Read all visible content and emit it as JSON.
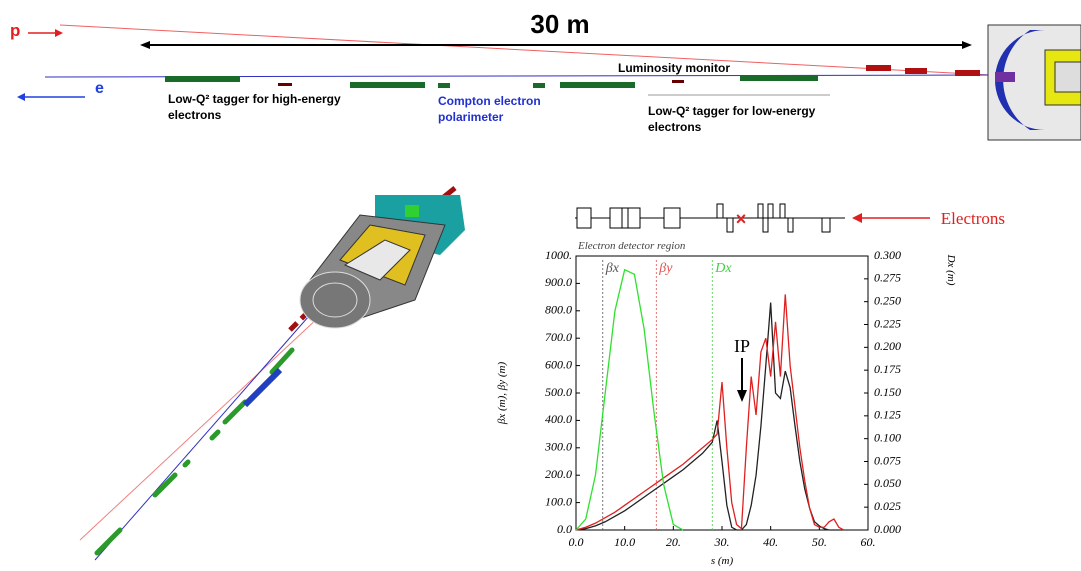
{
  "diagram": {
    "proton_label": "p",
    "electron_label": "e",
    "distance_label": "30 m",
    "luminosity_label": "Luminosity monitor",
    "high_energy_tagger_lines": [
      "Low-Q² tagger for high-energy",
      "electrons"
    ],
    "compton_lines": [
      "Compton electron",
      "polarimeter"
    ],
    "low_energy_tagger_lines": [
      "Low-Q² tagger for low-energy",
      "electrons"
    ]
  },
  "chart_data": {
    "type": "line",
    "region_label": "Electron detector region",
    "beam_label": "Electrons",
    "ip_label": "IP",
    "marker_labels": [
      "βx",
      "βy",
      "Dx"
    ],
    "xlabel": "s (m)",
    "ylabel": "βx (m), βy (m)",
    "y2label": "Dx (m)",
    "xlim": [
      0,
      60
    ],
    "ylim": [
      0,
      1000
    ],
    "y2lim": [
      0,
      0.3
    ],
    "xticks": [
      {
        "value": 0,
        "label": "0.0"
      },
      {
        "value": 10,
        "label": "10.0"
      },
      {
        "value": 20,
        "label": "20."
      },
      {
        "value": 30,
        "label": "30."
      },
      {
        "value": 40,
        "label": "40."
      },
      {
        "value": 50,
        "label": "50."
      },
      {
        "value": 60,
        "label": "60."
      }
    ],
    "yticks": [
      {
        "value": 0,
        "label": "0.0"
      },
      {
        "value": 100,
        "label": "100.0"
      },
      {
        "value": 200,
        "label": "200.0"
      },
      {
        "value": 300,
        "label": "300.0"
      },
      {
        "value": 400,
        "label": "400.0"
      },
      {
        "value": 500,
        "label": "500.0"
      },
      {
        "value": 600,
        "label": "600.0"
      },
      {
        "value": 700,
        "label": "700.0"
      },
      {
        "value": 800,
        "label": "800.0"
      },
      {
        "value": 900,
        "label": "900.0"
      },
      {
        "value": 1000,
        "label": "1000."
      }
    ],
    "y2ticks": [
      {
        "value": 0,
        "label": "0.000"
      },
      {
        "value": 0.025,
        "label": "0.025"
      },
      {
        "value": 0.05,
        "label": "0.050"
      },
      {
        "value": 0.075,
        "label": "0.075"
      },
      {
        "value": 0.1,
        "label": "0.100"
      },
      {
        "value": 0.125,
        "label": "0.125"
      },
      {
        "value": 0.15,
        "label": "0.150"
      },
      {
        "value": 0.175,
        "label": "0.175"
      },
      {
        "value": 0.2,
        "label": "0.200"
      },
      {
        "value": 0.225,
        "label": "0.225"
      },
      {
        "value": 0.25,
        "label": "0.250"
      },
      {
        "value": 0.275,
        "label": "0.275"
      },
      {
        "value": 0.3,
        "label": "0.300"
      }
    ],
    "marker_positions": [
      5.5,
      16.5,
      28
    ],
    "marker_colors": [
      "#555555",
      "#e05050",
      "#40d040"
    ],
    "x": [
      0,
      2,
      4,
      6,
      8,
      10,
      12,
      14,
      16,
      18,
      20,
      22,
      24,
      26,
      28,
      29,
      30,
      31,
      32,
      33,
      34,
      35,
      36,
      37,
      38,
      39,
      40,
      41,
      42,
      43,
      44,
      45,
      46,
      47,
      48,
      49,
      50,
      51,
      52,
      53,
      54,
      55
    ],
    "series": [
      {
        "color": "#222222",
        "values": [
          0,
          5,
          15,
          30,
          50,
          70,
          95,
          120,
          145,
          170,
          195,
          220,
          250,
          280,
          320,
          400,
          250,
          90,
          10,
          0,
          0,
          20,
          90,
          200,
          380,
          600,
          830,
          500,
          480,
          580,
          520,
          380,
          250,
          150,
          80,
          30,
          15,
          5,
          0,
          0,
          0,
          0
        ]
      },
      {
        "color": "#e02020",
        "values": [
          0,
          10,
          25,
          45,
          65,
          90,
          115,
          140,
          165,
          190,
          215,
          240,
          270,
          300,
          330,
          350,
          540,
          300,
          100,
          20,
          5,
          300,
          560,
          420,
          650,
          700,
          560,
          760,
          560,
          860,
          600,
          450,
          300,
          180,
          80,
          20,
          10,
          10,
          30,
          40,
          10,
          0
        ]
      },
      {
        "color": "#30e030",
        "axis": "y2",
        "values": [
          0,
          0.012,
          0.06,
          0.15,
          0.24,
          0.285,
          0.28,
          0.22,
          0.13,
          0.05,
          0.006,
          0,
          null,
          null,
          null,
          null,
          null,
          null,
          null,
          null,
          null,
          null,
          null,
          null,
          null,
          null,
          null,
          null,
          null,
          null,
          null,
          null,
          null,
          null,
          null,
          null,
          null,
          null,
          null,
          null,
          null,
          null
        ]
      }
    ]
  }
}
